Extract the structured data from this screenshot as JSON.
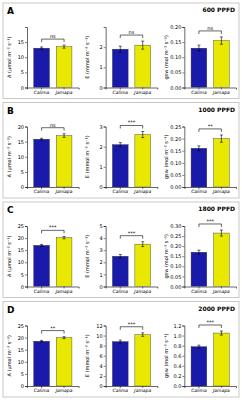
{
  "chart_data": [
    {
      "title": "A",
      "subtitle": "600 PPFD",
      "charts": [
        {
          "type": "bar",
          "y_label": "A (μmol m⁻² s⁻¹)",
          "categories": [
            "Calima",
            "Jamapa"
          ],
          "values": [
            13.0,
            13.5
          ],
          "errors": [
            0.4,
            0.5
          ],
          "colors": [
            "#1a1aaa",
            "#e8e800"
          ],
          "ylim": [
            0,
            20
          ],
          "yticks": [
            0,
            5,
            10,
            15
          ],
          "annotation": "ns"
        },
        {
          "type": "bar",
          "y_label": "E (mmol m⁻² s⁻¹)",
          "categories": [
            "Calima",
            "Jamapa"
          ],
          "values": [
            1.9,
            2.1
          ],
          "errors": [
            0.15,
            0.2
          ],
          "colors": [
            "#1a1aaa",
            "#e8e800"
          ],
          "ylim": [
            0,
            3
          ],
          "yticks": [
            0,
            1,
            2
          ],
          "annotation": "ns"
        },
        {
          "type": "bar",
          "y_label": "gsw (mol m⁻² s⁻¹)",
          "categories": [
            "Calima",
            "Jamapa"
          ],
          "values": [
            0.13,
            0.155
          ],
          "errors": [
            0.01,
            0.012
          ],
          "colors": [
            "#1a1aaa",
            "#e8e800"
          ],
          "ylim": [
            0.0,
            0.2
          ],
          "yticks": [
            {
              "value": 0,
              "label": "0.00"
            },
            0.05,
            {
              "value": 0.1,
              "label": "0.10"
            },
            0.15,
            {
              "value": 0.2,
              "label": "0.20"
            }
          ],
          "annotation": "ns"
        }
      ]
    },
    {
      "title": "B",
      "subtitle": "1000 PPFD",
      "charts": [
        {
          "type": "bar",
          "y_label": "A (μmol m⁻² s⁻¹)",
          "categories": [
            "Calima",
            "Jamapa"
          ],
          "values": [
            15.8,
            17.0
          ],
          "errors": [
            0.3,
            0.6
          ],
          "colors": [
            "#1a1aaa",
            "#e8e800"
          ],
          "ylim": [
            0,
            20
          ],
          "yticks": [
            0,
            5,
            10,
            15,
            20
          ],
          "annotation": "ns"
        },
        {
          "type": "bar",
          "y_label": "E (mmol m⁻² s⁻¹)",
          "categories": [
            "Calima",
            "Jamapa"
          ],
          "values": [
            2.1,
            2.6
          ],
          "errors": [
            0.1,
            0.15
          ],
          "colors": [
            "#1a1aaa",
            "#e8e800"
          ],
          "ylim": [
            0,
            3
          ],
          "yticks": [
            0,
            1,
            2,
            3
          ],
          "annotation": "***"
        },
        {
          "type": "bar",
          "y_label": "gsw (mol m⁻² s⁻¹)",
          "categories": [
            "Calima",
            "Jamapa"
          ],
          "values": [
            0.16,
            0.2
          ],
          "errors": [
            0.01,
            0.015
          ],
          "colors": [
            "#1a1aaa",
            "#e8e800"
          ],
          "ylim": [
            0.0,
            0.25
          ],
          "yticks": [
            {
              "value": 0,
              "label": "0.00"
            },
            0.05,
            {
              "value": 0.1,
              "label": "0.10"
            },
            0.15,
            {
              "value": 0.2,
              "label": "0.20"
            },
            0.25
          ],
          "annotation": "**"
        }
      ]
    },
    {
      "title": "C",
      "subtitle": "1800 PPFD",
      "charts": [
        {
          "type": "bar",
          "y_label": "A (μmol m⁻² s⁻¹)",
          "categories": [
            "Calima",
            "Jamapa"
          ],
          "values": [
            17.0,
            20.2
          ],
          "errors": [
            0.4,
            0.5
          ],
          "colors": [
            "#1a1aaa",
            "#e8e800"
          ],
          "ylim": [
            0,
            25
          ],
          "yticks": [
            0,
            5,
            10,
            15,
            20,
            25
          ],
          "annotation": "***"
        },
        {
          "type": "bar",
          "y_label": "E (mmol m⁻² s⁻¹)",
          "categories": [
            "Calima",
            "Jamapa"
          ],
          "values": [
            2.5,
            3.5
          ],
          "errors": [
            0.15,
            0.2
          ],
          "colors": [
            "#1a1aaa",
            "#e8e800"
          ],
          "ylim": [
            0,
            5
          ],
          "yticks": [
            0,
            1,
            2,
            3,
            4,
            5
          ],
          "annotation": "***"
        },
        {
          "type": "bar",
          "y_label": "gsw (mol m⁻² s⁻¹)",
          "categories": [
            "Calima",
            "Jamapa"
          ],
          "values": [
            0.17,
            0.265
          ],
          "errors": [
            0.01,
            0.015
          ],
          "colors": [
            "#1a1aaa",
            "#e8e800"
          ],
          "ylim": [
            0.0,
            0.3
          ],
          "yticks": [
            {
              "value": 0,
              "label": "0.00"
            },
            0.05,
            {
              "value": 0.1,
              "label": "0.10"
            },
            0.15,
            {
              "value": 0.2,
              "label": "0.20"
            },
            0.25,
            {
              "value": 0.3,
              "label": "0.30"
            }
          ],
          "annotation": "***"
        }
      ]
    },
    {
      "title": "D",
      "subtitle": "2000 PPFD",
      "charts": [
        {
          "type": "bar",
          "y_label": "A (μmol m⁻² s⁻¹)",
          "categories": [
            "Calima",
            "Jamapa"
          ],
          "values": [
            18.5,
            20.0
          ],
          "errors": [
            0.35,
            0.4
          ],
          "colors": [
            "#1a1aaa",
            "#e8e800"
          ],
          "ylim": [
            0,
            25
          ],
          "yticks": [
            0,
            5,
            10,
            15,
            20,
            25
          ],
          "annotation": "**"
        },
        {
          "type": "bar",
          "y_label": "E (mmol m⁻² s⁻¹)",
          "categories": [
            "Calima",
            "Jamapa"
          ],
          "values": [
            8.8,
            10.2
          ],
          "errors": [
            0.3,
            0.35
          ],
          "colors": [
            "#1a1aaa",
            "#e8e800"
          ],
          "ylim": [
            0,
            12
          ],
          "yticks": [
            0,
            2,
            4,
            6,
            8,
            10,
            12
          ],
          "annotation": "***"
        },
        {
          "type": "bar",
          "y_label": "gsw (mol m⁻² s⁻¹)",
          "categories": [
            "Calima",
            "Jamapa"
          ],
          "values": [
            0.78,
            1.05
          ],
          "errors": [
            0.03,
            0.04
          ],
          "colors": [
            "#1a1aaa",
            "#e8e800"
          ],
          "ylim": [
            0.0,
            1.2
          ],
          "yticks": [
            {
              "value": 0,
              "label": "0.0"
            },
            0.2,
            0.4,
            0.6,
            0.8,
            {
              "value": 1,
              "label": "1.0"
            },
            1.2
          ],
          "annotation": "***"
        }
      ]
    }
  ]
}
